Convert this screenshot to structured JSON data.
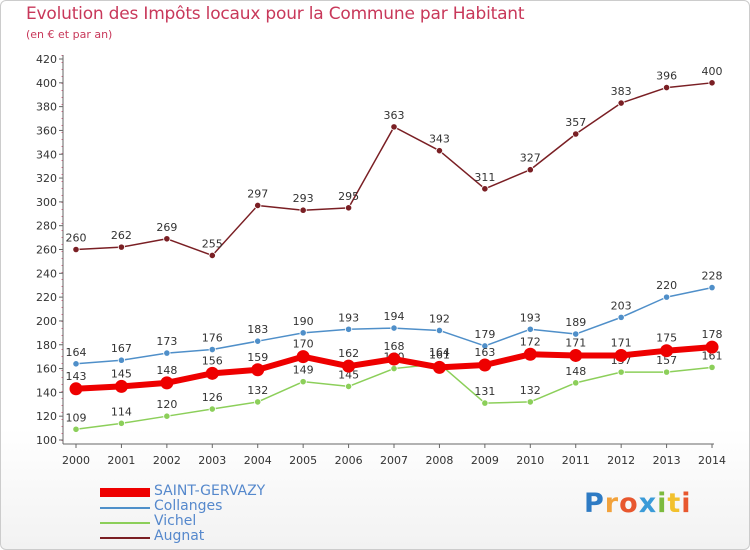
{
  "chart_data": {
    "type": "line",
    "title": "Evolution des Impôts locaux pour la Commune par Habitant",
    "subtitle": "(en € et par an)",
    "xlabel": "",
    "ylabel": "",
    "ylim": [
      100,
      420
    ],
    "ystep": 20,
    "grid": false,
    "legend_position": "bottom-left",
    "x": [
      "2000",
      "2001",
      "2002",
      "2003",
      "2004",
      "2005",
      "2006",
      "2007",
      "2008",
      "2009",
      "2010",
      "2011",
      "2012",
      "2013",
      "2014"
    ],
    "series": [
      {
        "name": "Augnat",
        "color": "#7a1f24",
        "values": [
          260,
          262,
          269,
          255,
          297,
          293,
          295,
          363,
          343,
          311,
          327,
          357,
          383,
          396,
          400
        ]
      },
      {
        "name": "Collanges",
        "color": "#4f8fc9",
        "values": [
          164,
          167,
          173,
          176,
          183,
          190,
          193,
          194,
          192,
          179,
          193,
          189,
          203,
          220,
          228
        ]
      },
      {
        "name": "Vichel",
        "color": "#8ccf5a",
        "values": [
          109,
          114,
          120,
          126,
          132,
          149,
          145,
          160,
          164,
          131,
          132,
          148,
          157,
          157,
          161
        ]
      },
      {
        "name": "SAINT-GERVAZY",
        "color": "#ee0000",
        "values": [
          143,
          145,
          148,
          156,
          159,
          170,
          162,
          168,
          161,
          163,
          172,
          171,
          171,
          175,
          178
        ]
      }
    ]
  },
  "legend": [
    "SAINT-GERVAZY",
    "Collanges",
    "Vichel",
    "Augnat"
  ],
  "logo": {
    "p": "P",
    "r": "r",
    "o": "o",
    "x": "x",
    "i": "i",
    "t": "t",
    "i2": "i"
  }
}
